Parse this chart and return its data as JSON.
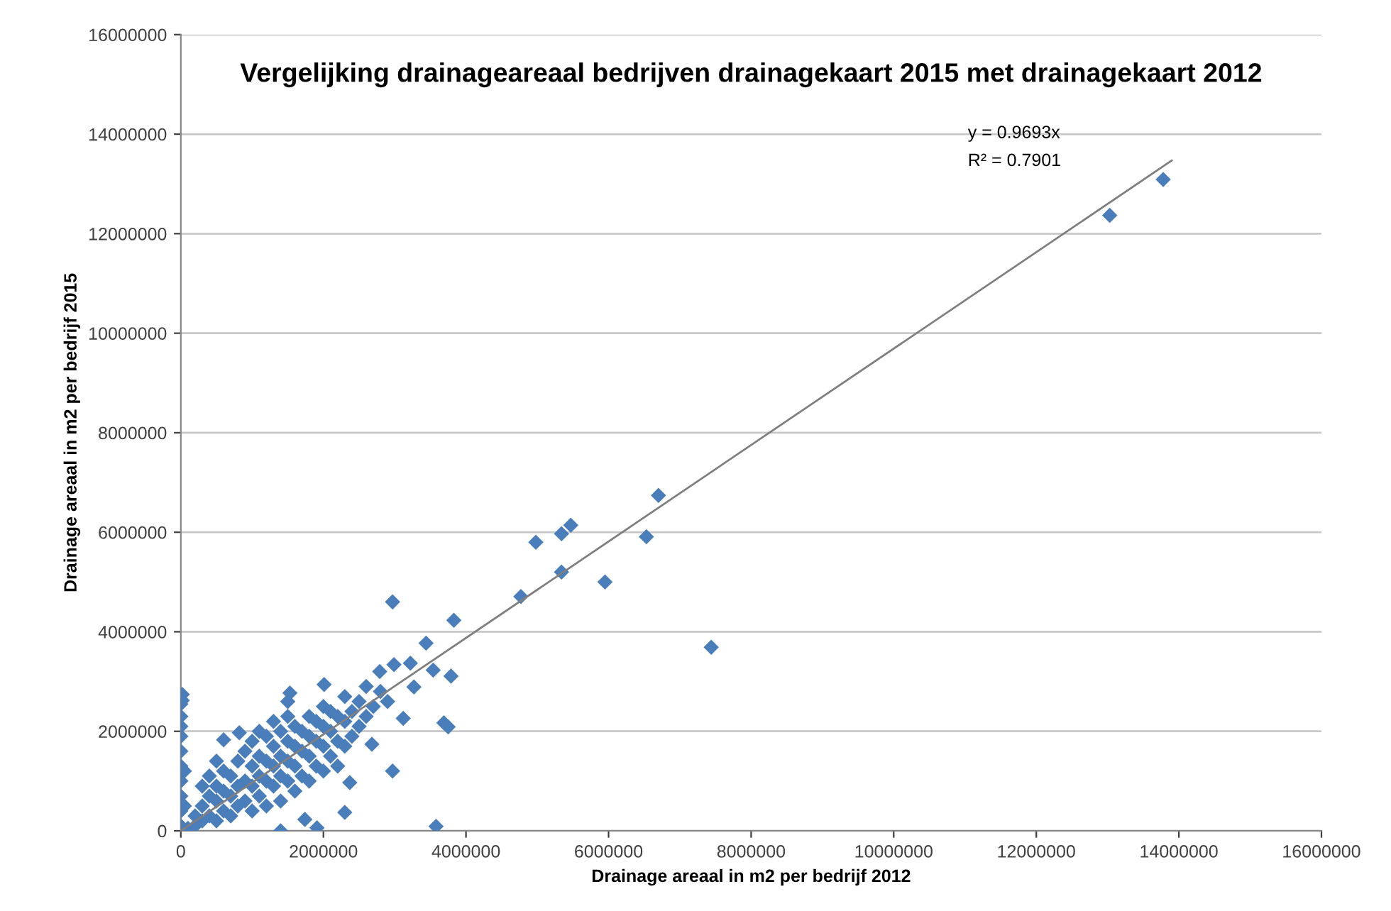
{
  "chart_data": {
    "type": "scatter",
    "title": "Vergelijking drainageareaal bedrijven drainagekaart 2015 met drainagekaart 2012",
    "xlabel": "Drainage areaal in m2 per bedrijf 2012",
    "ylabel": "Drainage areaal in m2 per bedrijf 2015",
    "annotations": [
      "y = 0.9693x",
      "R² = 0.7901"
    ],
    "xlim": [
      0,
      16000000
    ],
    "ylim": [
      0,
      16000000
    ],
    "xticks": [
      0,
      2000000,
      4000000,
      6000000,
      8000000,
      10000000,
      12000000,
      14000000,
      16000000
    ],
    "yticks": [
      0,
      2000000,
      4000000,
      6000000,
      8000000,
      10000000,
      12000000,
      14000000,
      16000000
    ],
    "grid": "y",
    "legend": false,
    "marker": "diamond",
    "series": [
      {
        "color": "#4a7ebb",
        "x": [
          0,
          0,
          0,
          0,
          0,
          0,
          0,
          0,
          0,
          0,
          20000,
          20000,
          50000,
          50000,
          100000,
          200000,
          200000,
          300000,
          300000,
          400000,
          400000,
          500000,
          500000,
          500000,
          600000,
          600000,
          600000,
          700000,
          700000,
          700000,
          800000,
          800000,
          800000,
          900000,
          900000,
          900000,
          1000000,
          1000000,
          1000000,
          1000000,
          1100000,
          1100000,
          1100000,
          1200000,
          1200000,
          1200000,
          1200000,
          1300000,
          1300000,
          1300000,
          1400000,
          1400000,
          1400000,
          1400000,
          1500000,
          1500000,
          1500000,
          1500000,
          1600000,
          1600000,
          1600000,
          1600000,
          1700000,
          1700000,
          1700000,
          1800000,
          1800000,
          1800000,
          1800000,
          1900000,
          1900000,
          1900000,
          2000000,
          2000000,
          2000000,
          2000000,
          2100000,
          2100000,
          2100000,
          2200000,
          2200000,
          2200000,
          2300000,
          2300000,
          2300000,
          2400000,
          2400000,
          2500000,
          2500000,
          2600000,
          2600000,
          2700000,
          2800000,
          2900000,
          300000,
          400000,
          500000,
          1100000,
          1300000,
          1500000,
          600000,
          820000,
          1400000,
          1530000,
          1740000,
          1910000,
          2010000,
          2300000,
          2370000,
          2680000,
          2790000,
          2970000,
          2970000,
          2990000,
          3120000,
          3220000,
          3270000,
          3440000,
          3540000,
          3580000,
          3690000,
          3750000,
          3790000,
          3830000,
          4770000,
          4980000,
          5340000,
          5340000,
          5470000,
          5950000,
          6530000,
          6700000,
          7440000,
          13030000,
          13780000
        ],
        "values": [
          100000,
          400000,
          700000,
          1000000,
          1300000,
          1600000,
          1900000,
          2100000,
          2300000,
          2550000,
          2740000,
          2620000,
          1200000,
          500000,
          50000,
          100000,
          300000,
          200000,
          500000,
          300000,
          700000,
          200000,
          600000,
          900000,
          400000,
          800000,
          1200000,
          300000,
          700000,
          1100000,
          500000,
          900000,
          1400000,
          600000,
          1000000,
          1600000,
          400000,
          900000,
          1300000,
          1800000,
          700000,
          1100000,
          1500000,
          500000,
          1000000,
          1400000,
          1900000,
          900000,
          1300000,
          1700000,
          600000,
          1100000,
          1500000,
          2000000,
          1000000,
          1400000,
          1800000,
          2300000,
          800000,
          1300000,
          1700000,
          2100000,
          1100000,
          1600000,
          2000000,
          1000000,
          1500000,
          1900000,
          2300000,
          1300000,
          1800000,
          2200000,
          1200000,
          1700000,
          2100000,
          2500000,
          1500000,
          2000000,
          2400000,
          1300000,
          1800000,
          2300000,
          1700000,
          2200000,
          2700000,
          1900000,
          2400000,
          2100000,
          2600000,
          2300000,
          2900000,
          2500000,
          2800000,
          2600000,
          900000,
          1100000,
          1400000,
          2000000,
          2200000,
          2600000,
          1830000,
          1970000,
          0,
          2770000,
          230000,
          60000,
          2940000,
          370000,
          970000,
          1740000,
          3200000,
          4600000,
          1200000,
          3340000,
          2260000,
          3370000,
          2890000,
          3770000,
          3230000,
          90000,
          2170000,
          2090000,
          3110000,
          4230000,
          4710000,
          5800000,
          5970000,
          5200000,
          6140000,
          5000000,
          5910000,
          6740000,
          3690000,
          12370000,
          13090000
        ]
      },
      {
        "type": "line",
        "color": "#7f7f7f",
        "marker": "none",
        "x": [
          0,
          13900000
        ],
        "values": [
          0,
          13470000
        ]
      }
    ]
  }
}
